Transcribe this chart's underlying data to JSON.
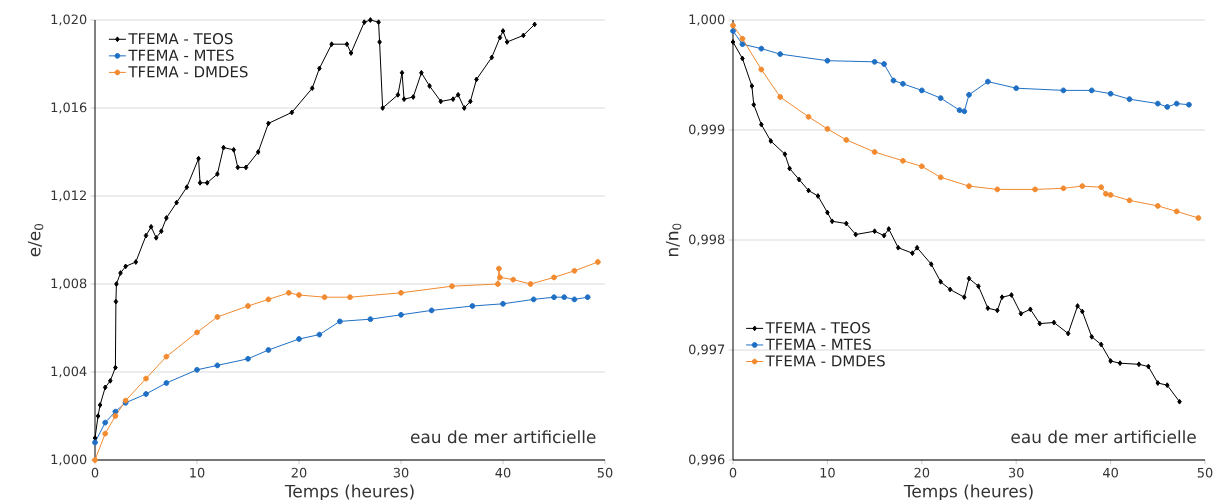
{
  "chart_data": [
    {
      "type": "line",
      "xlabel": "Temps (heures)",
      "ylabel": "e/e$_{0}$",
      "xlim": [
        0,
        50
      ],
      "ylim": [
        1.0,
        1.02
      ],
      "xticks": [
        0,
        10,
        20,
        30,
        40,
        50
      ],
      "yticks": [
        {
          "value": 1.0,
          "label": "1,000"
        },
        {
          "value": 1.004,
          "label": "1,004"
        },
        {
          "value": 1.008,
          "label": "1,008"
        },
        {
          "value": 1.012,
          "label": "1,012"
        },
        {
          "value": 1.016,
          "label": "1,016"
        },
        {
          "value": 1.02,
          "label": "1,020"
        }
      ],
      "grid": "y",
      "legend": "top left",
      "annotations": [
        "eau de mer artificielle"
      ],
      "series": [
        {
          "name": "TFEMA - TEOS",
          "color": "#000000",
          "marker": "diamond",
          "x": [
            0,
            0.3,
            0.5,
            1,
            1.5,
            2,
            2.05,
            2.1,
            2.5,
            3,
            4,
            5,
            5.5,
            6,
            6.5,
            7,
            8,
            9,
            10.15,
            10.3,
            11,
            12,
            12.6,
            13.6,
            14,
            14.8,
            16,
            17,
            19.3,
            21.3,
            22,
            23.2,
            24.7,
            25.1,
            26.4,
            27,
            27.8,
            27.9,
            28.2,
            29.7,
            30.1,
            30.3,
            31.2,
            32,
            32.8,
            33.9,
            35.1,
            35.6,
            36.2,
            36.8,
            37.4,
            38.9,
            39.7,
            40,
            40.4,
            42,
            43.1
          ],
          "values": [
            1.001,
            1.002,
            1.0025,
            1.0033,
            1.0036,
            1.0042,
            1.0072,
            1.008,
            1.0085,
            1.0088,
            1.009,
            1.0102,
            1.0106,
            1.0101,
            1.0104,
            1.011,
            1.0117,
            1.0124,
            1.0137,
            1.0126,
            1.0126,
            1.013,
            1.0142,
            1.0141,
            1.0133,
            1.0133,
            1.014,
            1.0153,
            1.0158,
            1.0169,
            1.0178,
            1.0189,
            1.0189,
            1.0185,
            1.0199,
            1.02,
            1.0199,
            1.019,
            1.016,
            1.0166,
            1.0176,
            1.0164,
            1.0165,
            1.0176,
            1.017,
            1.0163,
            1.0164,
            1.0166,
            1.016,
            1.0163,
            1.0173,
            1.0183,
            1.0192,
            1.0195,
            1.019,
            1.0193,
            1.0198
          ]
        },
        {
          "name": "TFEMA - MTES",
          "color": "#1f6fc4",
          "marker": "circle",
          "x": [
            0,
            1,
            2,
            3,
            5,
            7,
            10,
            12,
            15,
            17,
            20,
            22,
            24,
            27,
            30,
            33,
            37,
            40,
            43,
            45,
            46,
            47,
            48.3
          ],
          "values": [
            1.0008,
            1.0017,
            1.0022,
            1.0026,
            1.003,
            1.0035,
            1.0041,
            1.0043,
            1.0046,
            1.005,
            1.0055,
            1.0057,
            1.0063,
            1.0064,
            1.0066,
            1.0068,
            1.007,
            1.0071,
            1.0073,
            1.0074,
            1.0074,
            1.0073,
            1.0074
          ]
        },
        {
          "name": "TFEMA - DMDES",
          "color": "#f28a30",
          "marker": "circle",
          "x": [
            0,
            1,
            2,
            3,
            5,
            7,
            10,
            12,
            15,
            17,
            19,
            20,
            22.5,
            25,
            30,
            35,
            39.5,
            39.6,
            39.7,
            41,
            42.7,
            45,
            47,
            49.3
          ],
          "values": [
            1.0,
            1.0012,
            1.002,
            1.0027,
            1.0037,
            1.0047,
            1.0058,
            1.0065,
            1.007,
            1.0073,
            1.0076,
            1.0075,
            1.0074,
            1.0074,
            1.0076,
            1.0079,
            1.008,
            1.0087,
            1.0083,
            1.0082,
            1.008,
            1.0083,
            1.0086,
            1.009
          ]
        }
      ]
    },
    {
      "type": "line",
      "xlabel": "Temps (heures)",
      "ylabel": "n/n$_{0}$",
      "xlim": [
        0,
        50
      ],
      "ylim": [
        0.996,
        1.0
      ],
      "xticks": [
        0,
        10,
        20,
        30,
        40,
        50
      ],
      "yticks": [
        {
          "value": 0.996,
          "label": "0,996"
        },
        {
          "value": 0.997,
          "label": "0,997"
        },
        {
          "value": 0.998,
          "label": "0,998"
        },
        {
          "value": 0.999,
          "label": "0,999"
        },
        {
          "value": 1.0,
          "label": "1,000"
        }
      ],
      "grid": "y",
      "legend": "bottom left",
      "annotations": [
        "eau de mer artificielle"
      ],
      "series": [
        {
          "name": "TFEMA - TEOS",
          "color": "#000000",
          "marker": "diamond",
          "x": [
            0,
            1,
            2,
            2.2,
            3,
            4,
            5.5,
            6,
            7,
            8,
            9,
            10,
            10.5,
            12,
            13,
            15,
            16,
            16.5,
            17.5,
            19,
            19.5,
            21,
            22,
            23,
            24.5,
            25,
            26,
            27,
            28,
            28.5,
            29.5,
            30.5,
            31.5,
            32.5,
            34,
            35.5,
            36.5,
            37,
            38,
            39,
            40,
            41,
            43,
            44,
            45,
            46,
            47.3
          ],
          "values": [
            0.9998,
            0.99965,
            0.9994,
            0.99923,
            0.99905,
            0.9989,
            0.99878,
            0.99865,
            0.99855,
            0.99845,
            0.9984,
            0.99825,
            0.99817,
            0.99815,
            0.99805,
            0.99808,
            0.99804,
            0.9981,
            0.99793,
            0.99788,
            0.99793,
            0.99778,
            0.99762,
            0.99755,
            0.99748,
            0.99765,
            0.99758,
            0.99738,
            0.99736,
            0.99748,
            0.9975,
            0.99733,
            0.99737,
            0.99724,
            0.99725,
            0.99715,
            0.9974,
            0.99735,
            0.99712,
            0.99705,
            0.9969,
            0.99688,
            0.99687,
            0.99685,
            0.9967,
            0.99668,
            0.99653
          ]
        },
        {
          "name": "TFEMA - MTES",
          "color": "#1f6fc4",
          "marker": "circle",
          "x": [
            0,
            1,
            3,
            5,
            10,
            15,
            16,
            17,
            18,
            20,
            22,
            24,
            24.5,
            25,
            27,
            30,
            35,
            38,
            40,
            42,
            45,
            46,
            47,
            48.3
          ],
          "values": [
            0.9999,
            0.99978,
            0.99974,
            0.99969,
            0.99963,
            0.99962,
            0.9996,
            0.99945,
            0.99942,
            0.99936,
            0.99929,
            0.99918,
            0.99917,
            0.99932,
            0.99944,
            0.99938,
            0.99936,
            0.99936,
            0.99933,
            0.99928,
            0.99924,
            0.99921,
            0.99924,
            0.99923
          ]
        },
        {
          "name": "TFEMA - DMDES",
          "color": "#f28a30",
          "marker": "circle",
          "x": [
            0,
            1,
            3,
            5,
            8,
            10,
            12,
            15,
            18,
            20,
            22,
            25,
            28,
            32,
            35,
            37,
            39,
            39.5,
            40,
            42,
            45,
            47,
            49.3
          ],
          "values": [
            0.99995,
            0.99983,
            0.99955,
            0.9993,
            0.99912,
            0.99901,
            0.99891,
            0.9988,
            0.99872,
            0.99867,
            0.99857,
            0.99849,
            0.99846,
            0.99846,
            0.99847,
            0.99849,
            0.99848,
            0.99842,
            0.99841,
            0.99836,
            0.99831,
            0.99826,
            0.9982
          ]
        }
      ]
    }
  ]
}
